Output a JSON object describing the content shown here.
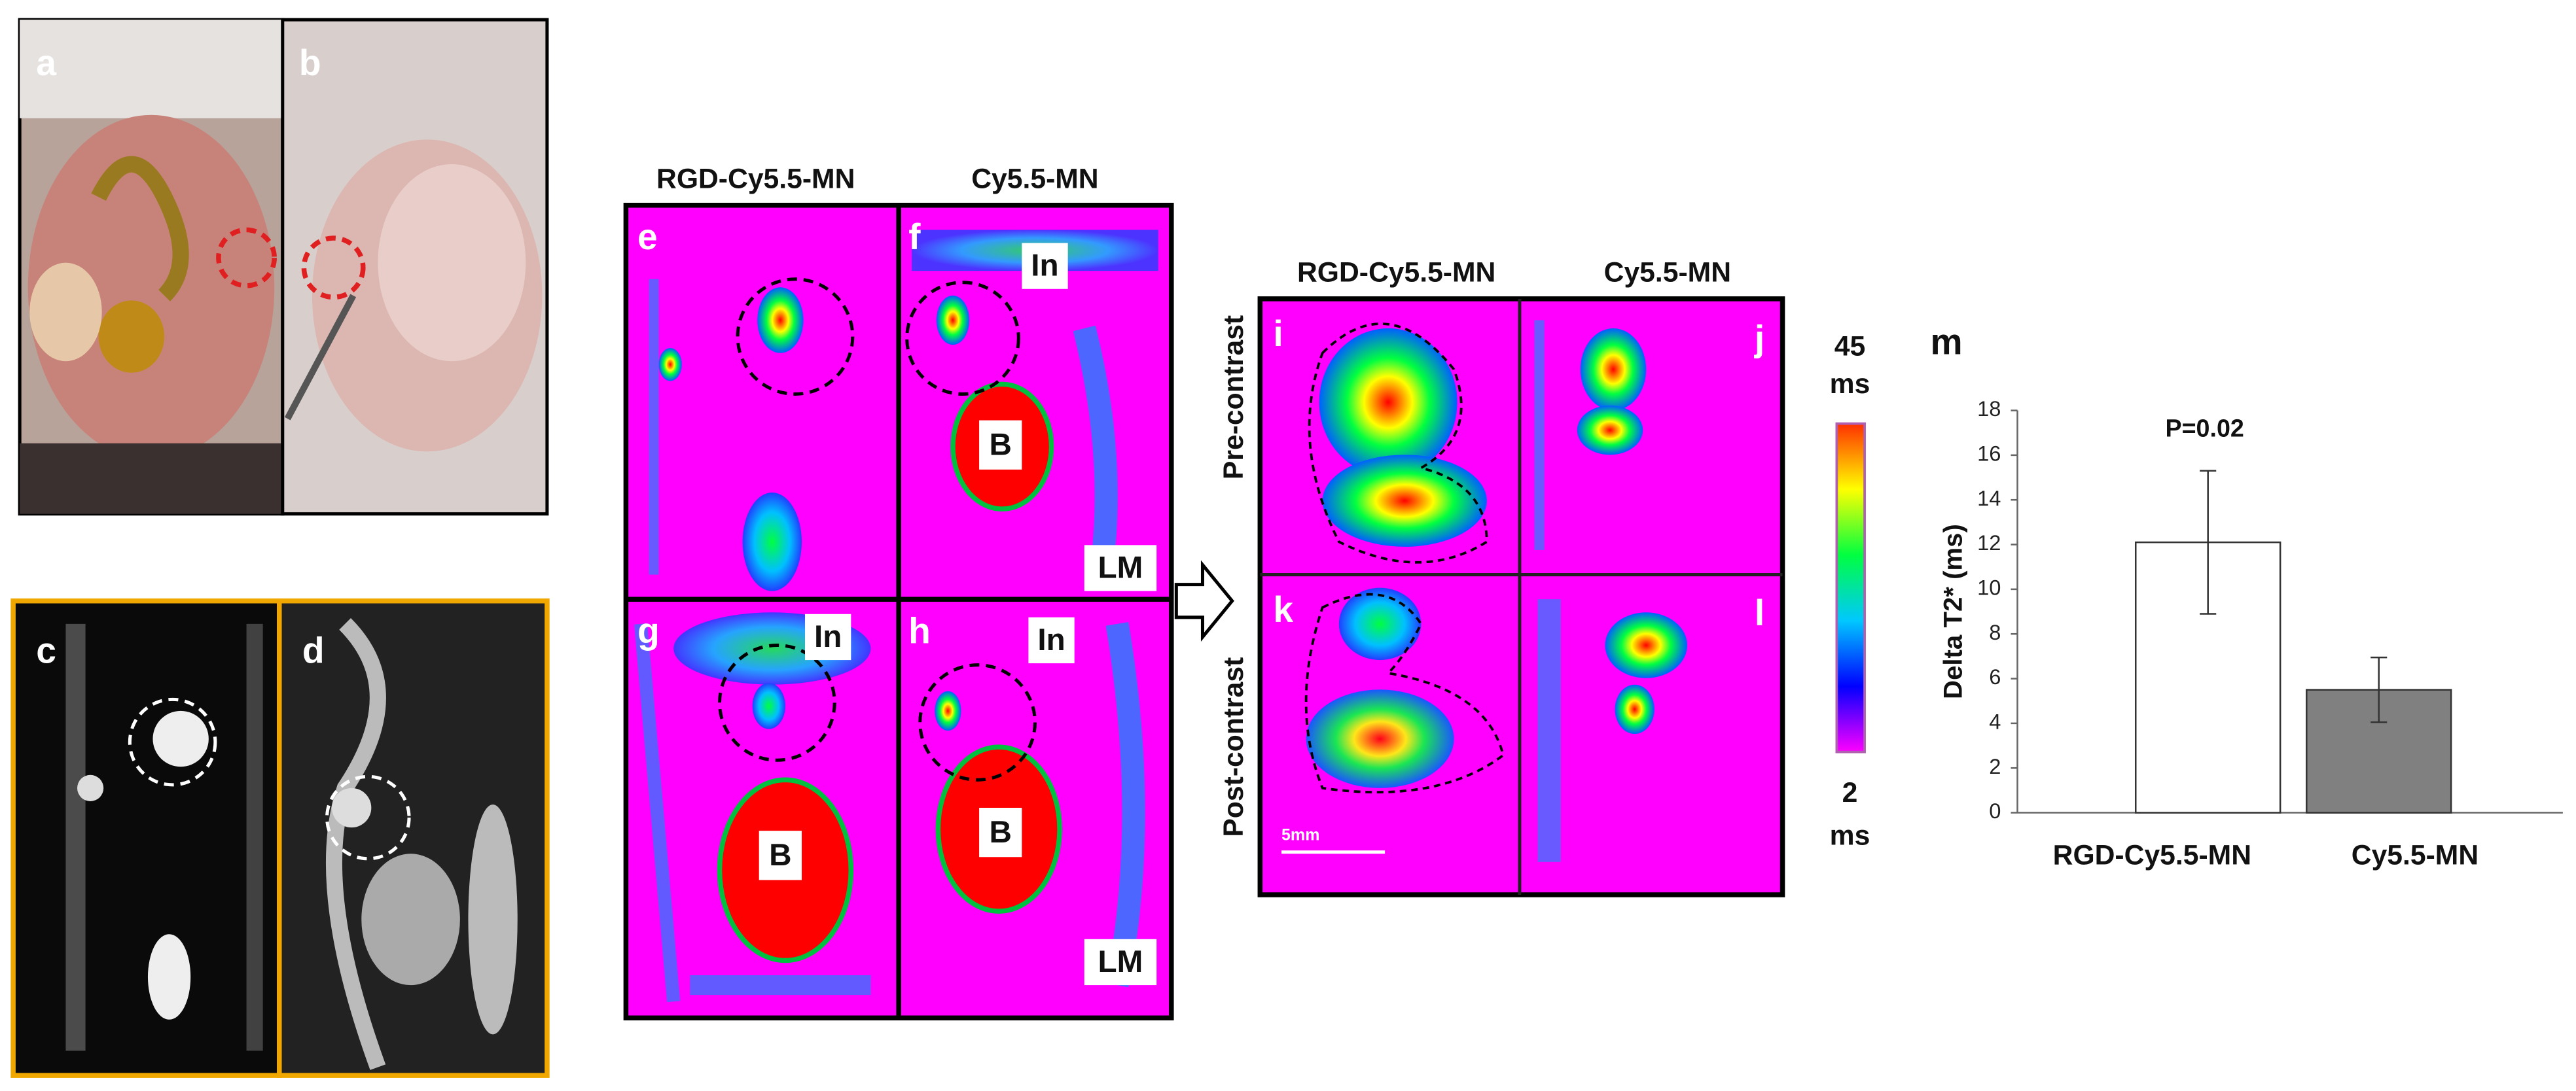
{
  "panel_labels": [
    "a",
    "b",
    "c",
    "d",
    "e",
    "f",
    "g",
    "h",
    "i",
    "j",
    "k",
    "l",
    "m"
  ],
  "column_headers": [
    "RGD-Cy5.5-MN",
    "Cy5.5-MN",
    "RGD-Cy5.5-MN",
    "Cy5.5-MN"
  ],
  "row_headers": [
    "Pre-contrast",
    "Post-contrast"
  ],
  "annotations": [
    "In",
    "B",
    "LM",
    "In",
    "In",
    "B",
    "B",
    "LM"
  ],
  "scale_bar": "5mm",
  "colorbar": {
    "max": "45",
    "min": "2",
    "unit": "ms"
  },
  "chart_data": {
    "type": "bar",
    "ylabel": "Delta T2* (ms)",
    "categories": [
      "RGD-Cy5.5-MN",
      "Cy5.5-MN"
    ],
    "values": [
      12.1,
      5.5
    ],
    "errors": [
      3.2,
      1.45
    ],
    "colors": [
      "#ffffff",
      "#808080"
    ],
    "annotation": "P=0.02",
    "ylim": [
      0,
      18
    ],
    "yticks": [
      0,
      2,
      4,
      6,
      8,
      10,
      12,
      14,
      16,
      18
    ]
  }
}
